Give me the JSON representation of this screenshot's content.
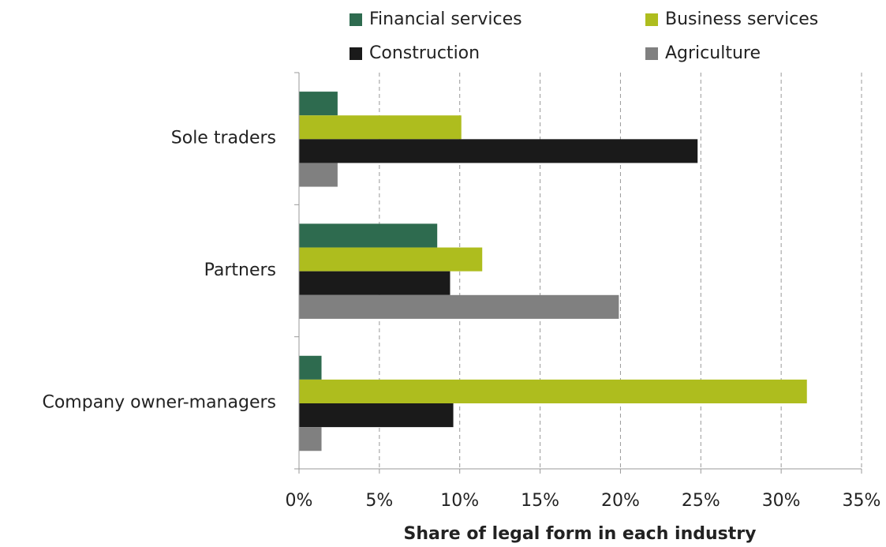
{
  "chart_data": {
    "type": "hbar",
    "xlabel": "Share of legal form in each industry",
    "categories": [
      "Sole traders",
      "Partners",
      "Company owner-managers"
    ],
    "series": [
      {
        "name": "Financial services",
        "color": "#2e6b4f",
        "values": [
          2.4,
          8.6,
          1.4
        ]
      },
      {
        "name": "Business services",
        "color": "#aebd1e",
        "values": [
          10.1,
          11.4,
          31.6
        ]
      },
      {
        "name": "Construction",
        "color": "#1a1a1a",
        "values": [
          24.8,
          9.4,
          9.6
        ]
      },
      {
        "name": "Agriculture",
        "color": "#808080",
        "values": [
          2.4,
          19.9,
          1.4
        ]
      }
    ],
    "xlim": [
      0,
      35
    ],
    "xticks": [
      {
        "value": 0,
        "label": "0%"
      },
      {
        "value": 5,
        "label": "5%"
      },
      {
        "value": 10,
        "label": "10%"
      },
      {
        "value": 15,
        "label": "15%"
      },
      {
        "value": 20,
        "label": "20%"
      },
      {
        "value": 25,
        "label": "25%"
      },
      {
        "value": 30,
        "label": "30%"
      },
      {
        "value": 35,
        "label": "35%"
      }
    ],
    "grid": true
  }
}
